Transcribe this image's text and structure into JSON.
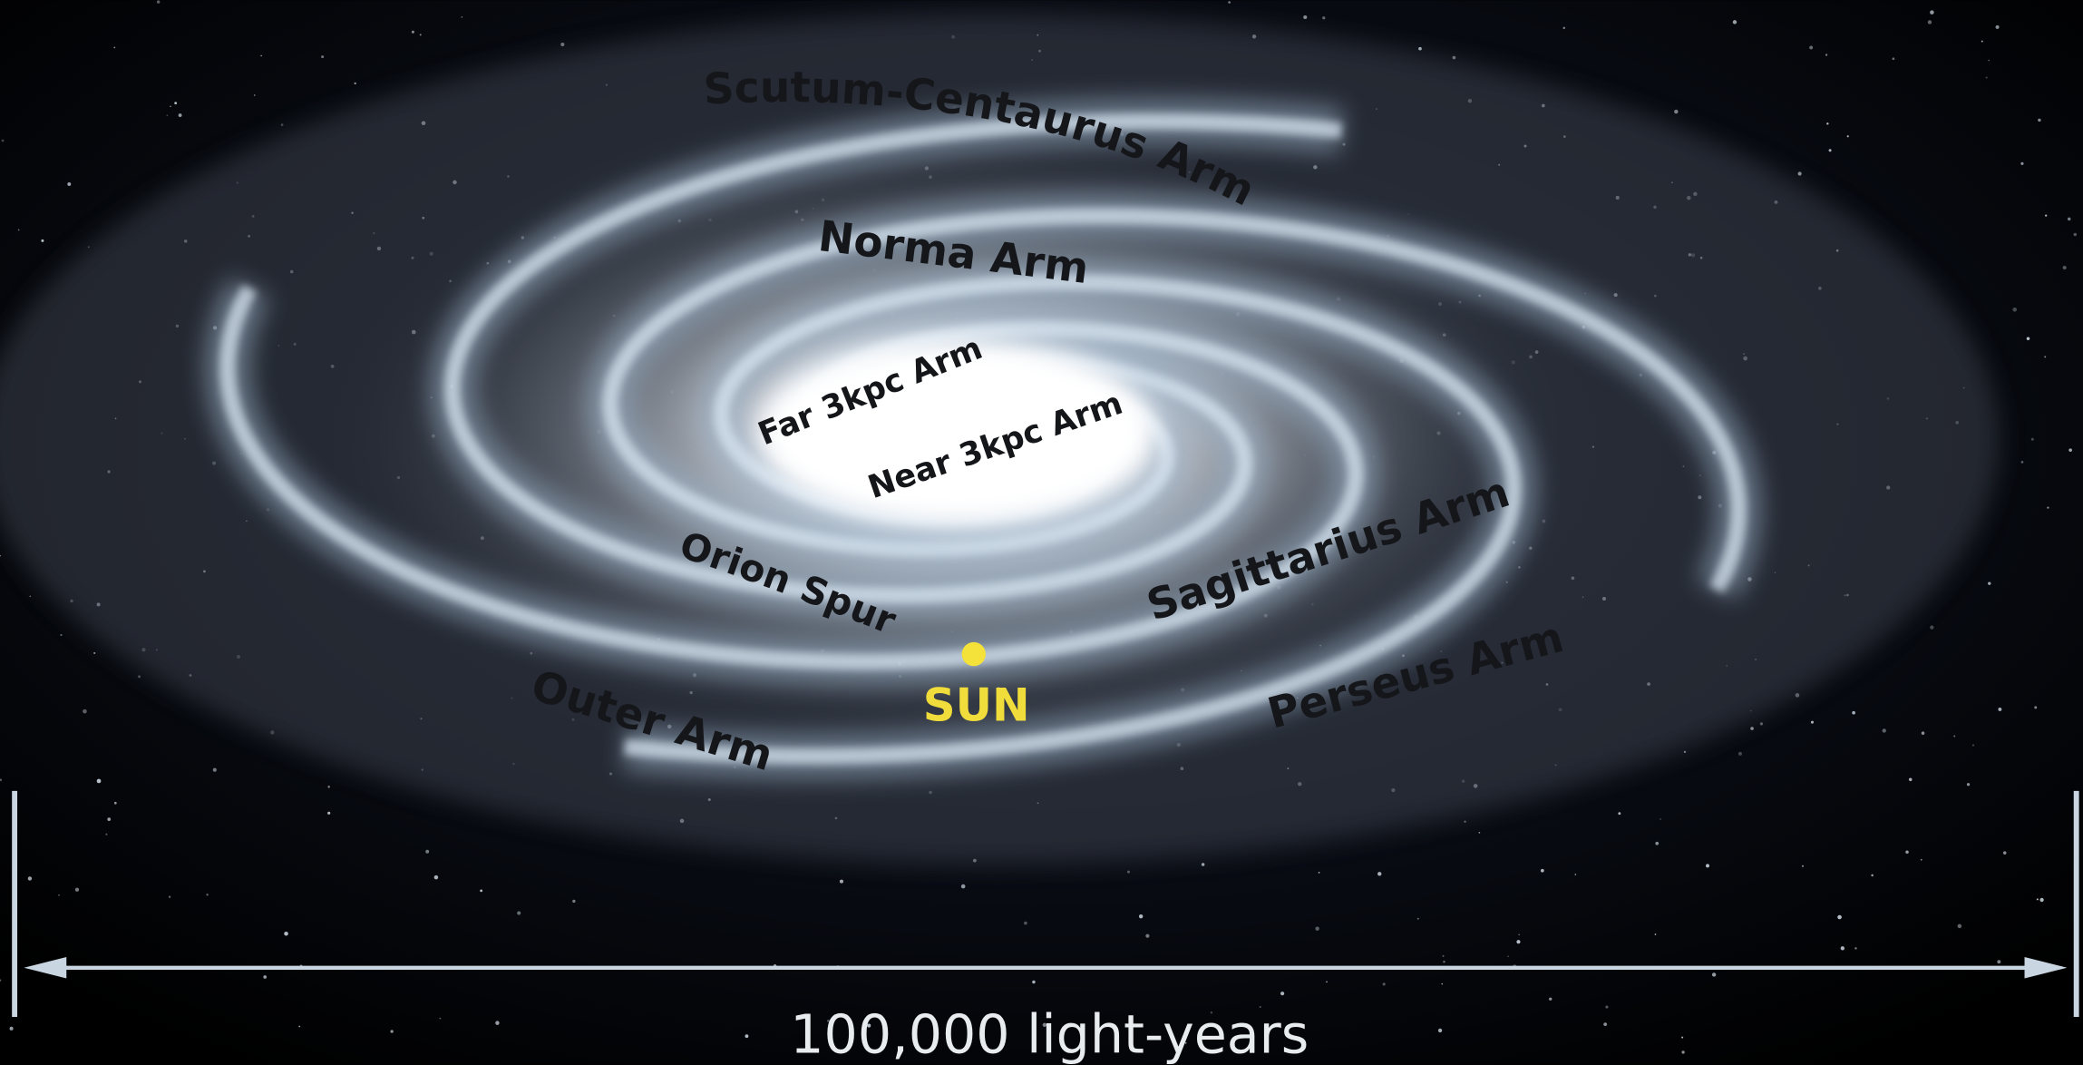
{
  "arms": [
    "Scutum-Centaurus Arm",
    "Norma Arm",
    "Far 3kpc Arm",
    "Near 3kpc Arm",
    "Orion Spur",
    "Sagittarius Arm",
    "Perseus Arm",
    "Outer Arm"
  ],
  "sun": "SUN",
  "scale_bar": "100,000 light-years"
}
